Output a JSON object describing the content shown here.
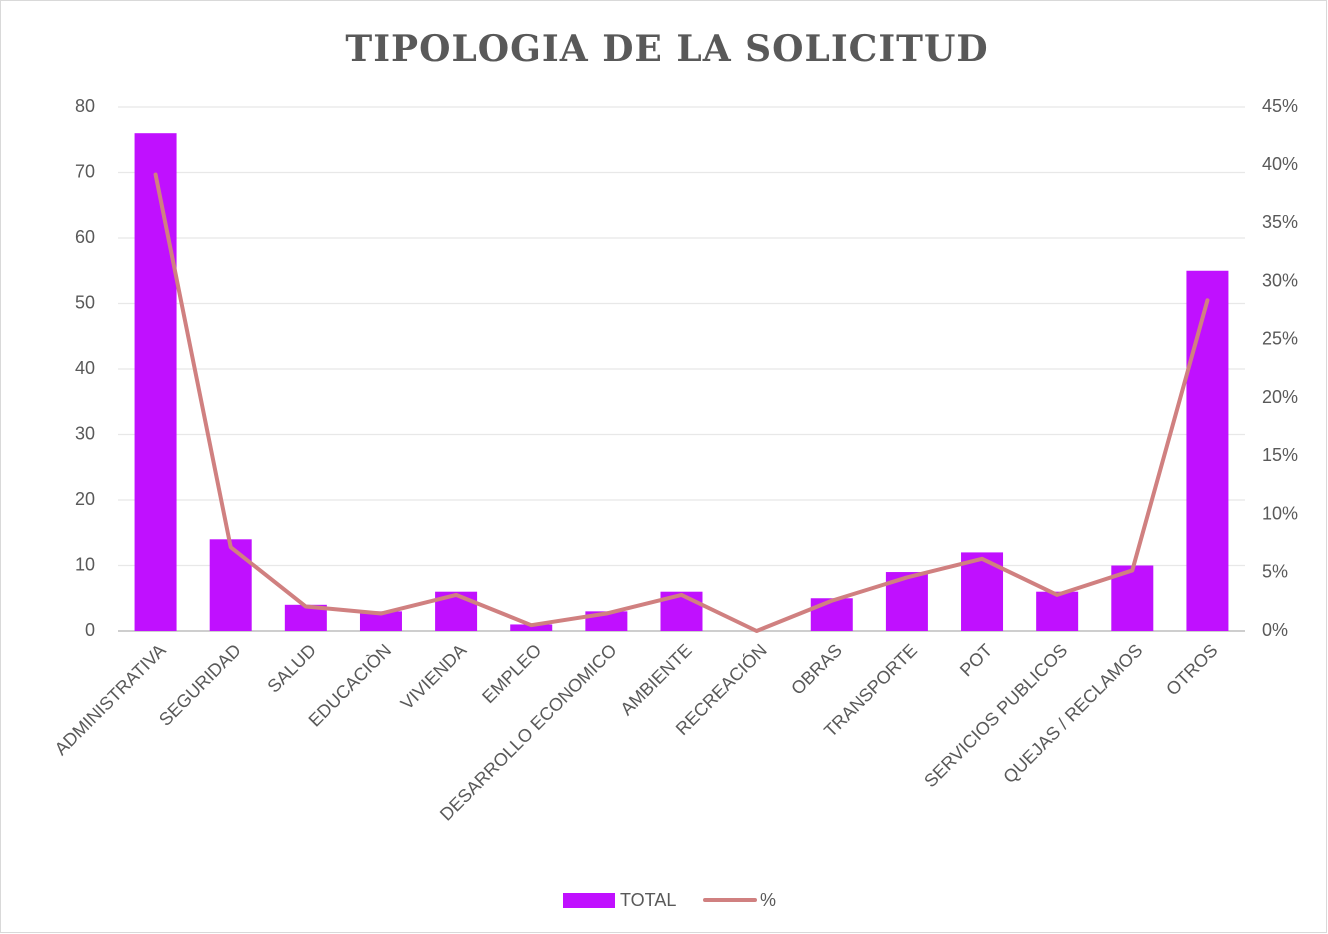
{
  "chart_data": {
    "type": "bar",
    "title": "TIPOLOGIA DE LA SOLICITUD",
    "categories": [
      "ADMINISTRATIVA",
      "SEGURIDAD",
      "SALUD",
      "EDUCACIÒN",
      "VIVIENDA",
      "EMPLEO",
      "DESARROLLO ECONOMICO",
      "AMBIENTE",
      "RECREACIÓN",
      "OBRAS",
      "TRANSPORTE",
      "POT",
      "SERVICIOS PUBLICOS",
      "QUEJAS / RECLAMOS",
      "OTROS"
    ],
    "series": [
      {
        "name": "TOTAL",
        "type": "bar",
        "color": "#c010ff",
        "values": [
          76,
          14,
          4,
          3,
          6,
          1,
          3,
          6,
          0,
          5,
          9,
          12,
          6,
          10,
          55
        ]
      },
      {
        "name": "%",
        "type": "line",
        "axis": "y2",
        "color": "#d08080",
        "values": [
          39.2,
          7.2,
          2.1,
          1.5,
          3.1,
          0.5,
          1.5,
          3.1,
          0,
          2.6,
          4.6,
          6.2,
          3.1,
          5.2,
          28.4
        ]
      }
    ],
    "ylim": [
      0,
      80
    ],
    "yticks": [
      0,
      10,
      20,
      30,
      40,
      50,
      60,
      70,
      80
    ],
    "y2lim": [
      0,
      45
    ],
    "y2ticks": [
      {
        "value": 0,
        "label": "0%"
      },
      {
        "value": 5,
        "label": "5%"
      },
      {
        "value": 10,
        "label": "10%"
      },
      {
        "value": 15,
        "label": "15%"
      },
      {
        "value": 20,
        "label": "20%"
      },
      {
        "value": 25,
        "label": "25%"
      },
      {
        "value": 30,
        "label": "30%"
      },
      {
        "value": 35,
        "label": "35%"
      },
      {
        "value": 40,
        "label": "40%"
      },
      {
        "value": 45,
        "label": "45%"
      }
    ],
    "grid": true,
    "legend": "bottom"
  }
}
